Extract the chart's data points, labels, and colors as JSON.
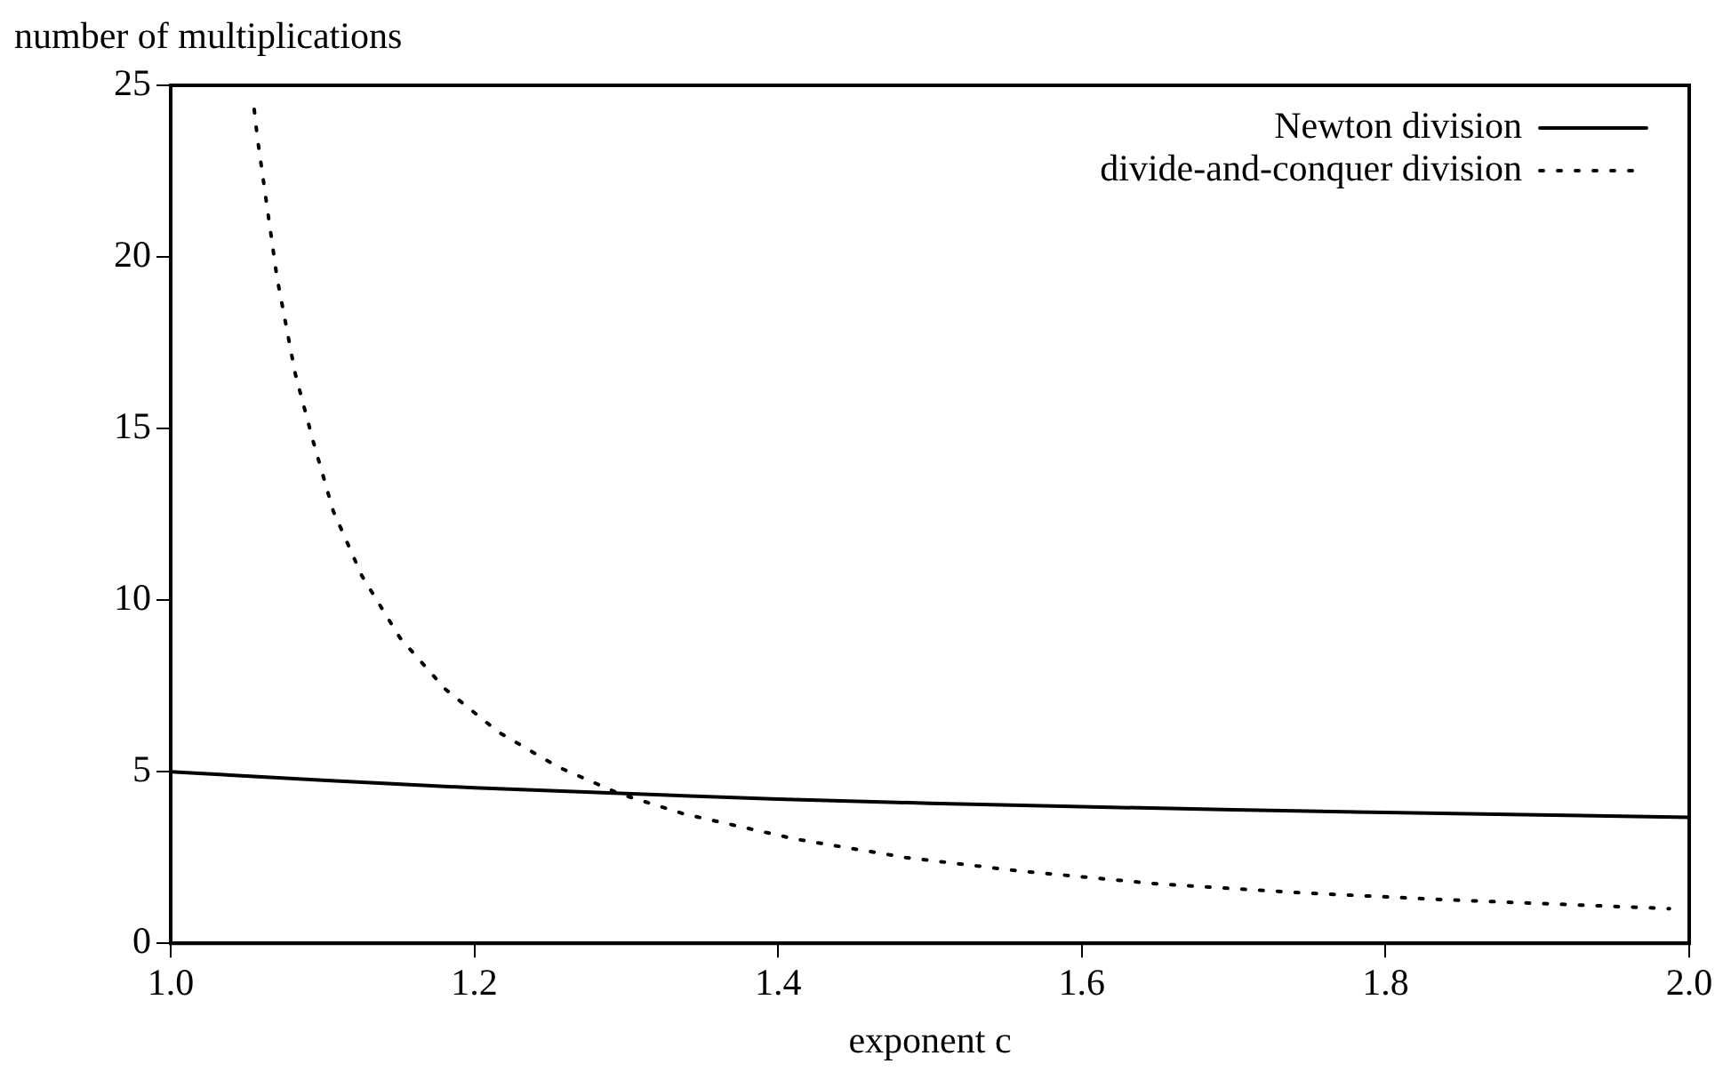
{
  "chart_data": {
    "type": "line",
    "xlabel": "exponent c",
    "ylabel": "number of multiplications",
    "xlim": [
      1,
      2
    ],
    "xticks": [
      {
        "value": 1,
        "label": "1.0"
      },
      {
        "value": 1.2,
        "label": "1.2"
      },
      {
        "value": 1.4,
        "label": "1.4"
      },
      {
        "value": 1.6,
        "label": "1.6"
      },
      {
        "value": 1.8,
        "label": "1.8"
      },
      {
        "value": 2,
        "label": "2.0"
      }
    ],
    "ylim": [
      0,
      25
    ],
    "yticks": [
      0,
      5,
      10,
      15,
      20,
      25
    ],
    "grid": false,
    "legend": "top right",
    "marker": "none",
    "series": [
      {
        "name": "Newton division",
        "color": "#000000",
        "line_style": "solid",
        "x": [
          1.0,
          1.1,
          1.2,
          1.3,
          1.4,
          1.5,
          1.6,
          1.7,
          1.8,
          1.9,
          2.0
        ],
        "values": [
          5,
          4.75,
          4.53,
          4.36,
          4.2,
          4.08,
          3.98,
          3.89,
          3.81,
          3.74,
          3.67
        ]
      },
      {
        "name": "divide-and-conquer division",
        "color": "#000000",
        "line_style": "dotted",
        "x": [
          1.055,
          1.057,
          1.07,
          1.082,
          1.094,
          1.107,
          1.126,
          1.151,
          1.181,
          1.216,
          1.255,
          1.296,
          1.338,
          1.411,
          1.484,
          1.558,
          1.65,
          1.741,
          1.834,
          1.987
        ],
        "values": [
          24.3,
          23.5,
          19.4,
          16.6,
          14.6,
          12.6,
          10.7,
          8.9,
          7.4,
          6.15,
          5.14,
          4.35,
          3.77,
          3.04,
          2.5,
          2.11,
          1.73,
          1.48,
          1.28,
          1.01
        ]
      }
    ]
  }
}
